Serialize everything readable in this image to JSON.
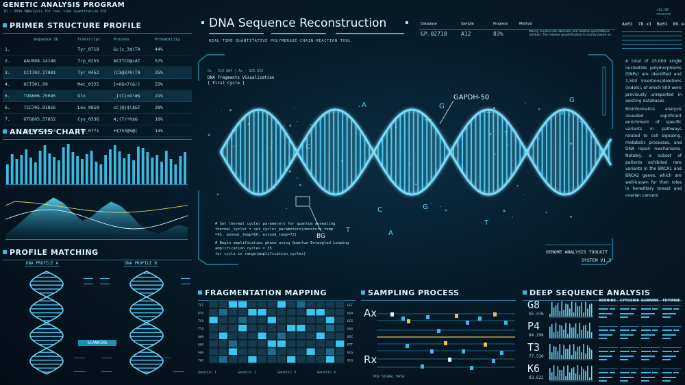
{
  "app": {
    "title": "GENETIC ANALYSIS PROGRAM",
    "subtitle_id": "ID : 3804.56C",
    "subtitle_desc": "Analysis for real-time quantitative PCR"
  },
  "primer": {
    "header": "PRIMER STRUCTURE PROFILE",
    "columns": [
      "Sequence ID",
      "Transcript",
      "Process",
      "Probability"
    ],
    "rows": [
      {
        "num": "1.",
        "seq": "",
        "transcript": "Tyr_0718",
        "process": "&c|c_3$(TA",
        "prob": "44%"
      },
      {
        "num": "2.",
        "seq": "AAU908.14148",
        "transcript": "Trp_0255",
        "process": "ASITCG@xAT",
        "prob": "57%"
      },
      {
        "num": "3.",
        "seq": "CCT702.17801",
        "transcript": "Tyr_0452",
        "process": "(C3@370(TA",
        "prob": "25%"
      },
      {
        "num": "4.",
        "seq": "GCT301.99",
        "transcript": "Met_0125",
        "process": "}>OG<7(&|)",
        "prob": "53%"
      },
      {
        "num": "5.",
        "seq": "TUA606.75045",
        "transcript": "Gln",
        "process": "_](C|<G!#$",
        "prob": "21%"
      },
      {
        "num": "6.",
        "seq": "TCC705.91856",
        "transcript": "Leu_0858",
        "process": "cC|@|$\\$&T",
        "prob": "28%"
      },
      {
        "num": "7.",
        "seq": "GTG605.57852",
        "transcript": "Cys_0336",
        "process": "4;(7/+%$&",
        "prob": "18%"
      },
      {
        "num": "8.",
        "seq": "TAT901.15483",
        "transcript": "Trp_0771",
        "process": "+$T53@%@(",
        "prob": "14%"
      }
    ]
  },
  "analysis_chart": {
    "header": "ANALYSIS CHART"
  },
  "chart_data": {
    "type": "bar",
    "values": [
      30,
      45,
      38,
      44,
      52,
      40,
      33,
      50,
      58,
      46,
      41,
      36,
      55,
      60,
      48,
      42,
      38,
      45,
      50,
      34,
      30,
      44,
      52,
      58,
      49,
      39,
      45,
      36,
      56,
      54,
      48,
      40,
      44,
      34,
      50,
      38,
      30,
      42,
      48
    ],
    "area_series": {
      "name": "",
      "values": [
        5,
        12,
        20,
        28,
        34,
        40,
        35,
        26,
        18,
        22,
        30,
        36,
        32,
        24,
        14,
        8,
        6,
        10,
        14,
        12
      ]
    }
  },
  "profile_matching": {
    "header": "PROFILE MATCHING",
    "profile_a": "DNA PROFILE A",
    "profile_b": "DNA PROFILE B",
    "scanning": "SCANNING",
    "labels": [
      "",
      ""
    ]
  },
  "center": {
    "title": "DNA Sequence Reconstruction",
    "subtitle": "REAL-TIME QUANTITATIVE POLYMERASE-CHAIN-REACTION TOOL",
    "fragment_coords": "Ox - 519.884 | Ax - 325.652",
    "fragment_title": "DNA Fragments Visualization",
    "fragment_cycle": "[ First Cycle ]",
    "gene_label": "GAPDH-50",
    "bg_label": "BG",
    "code_lines": [
      "# Set thermal cycler parameters for quantum annealing",
      "thermal_cycler = set_cycler_parameters(denature_temp",
      "=95, anneal_temp=60, extend_temp=72)",
      "",
      "# Begin amplification phase using Quantum Entangled Looping",
      "amplification_cycles = 35",
      "for cycle in range(amplification_cycles)"
    ],
    "toolkit_name": "GENOME ANALYSIS TOOLKIT",
    "toolkit_version": "SYSTEM V1.3"
  },
  "status": {
    "database_label": "Database",
    "database_value": "GP.02718",
    "sample_label": "Sample",
    "sample_value": "A12",
    "progress_label": "Progress",
    "progress_value": "83%",
    "method_label": "Method",
    "method_text": "Mainly divided into absolute and relative quantitative method. The relative quantification is mainly based on"
  },
  "topright": {
    "header_row": [
      "Ax01",
      "78.x1",
      "Bx01",
      "89.x4"
    ],
    "sub": "r12.00 reverse"
  },
  "right_text": {
    "paragraph1": "A total of 25,000 single nucleotide polymorphisms (SNPs) are identified and 1,500 insertions/deletions (indels), of which 500 were previously unreported in existing databases.",
    "paragraph2": "Bioinformatics analysis revealed significant enrichment of specific variants in pathways related to cell signaling, metabolic processes, and DNA repair mechanisms. Notably, a subset of patients exhibited rare variants in the BRCA1 and BRCA2 genes, which are well-known for their roles in hereditary breast and ovarian cancers"
  },
  "fragmentation": {
    "header": "FRAGMENTATION MAPPING",
    "row_labels_left": [
      "TCT",
      "GTG",
      "TCA",
      "TTA",
      "AAA",
      "AAG",
      "GGG",
      "TAC"
    ],
    "row_labels_right": [
      "GGT",
      "GGA",
      "GCG",
      "GAG",
      "GGC",
      "GTT",
      "GCG",
      "GCG"
    ],
    "footer": [
      "Genetic 1",
      "Genetic 2",
      "Genetic 3",
      "Genetic 4"
    ]
  },
  "sampling": {
    "header": "SAMPLING PROCESS",
    "label_top": "Ax",
    "label_bottom": "Rx",
    "foot": "PCR SIGNAL DATA"
  },
  "deep": {
    "header": "DEEP SEQUENCE ANALYSIS",
    "rows": [
      {
        "letter": "G8",
        "num": "55.476"
      },
      {
        "letter": "P4",
        "num": "84.298"
      },
      {
        "letter": "T3",
        "num": "77.520"
      },
      {
        "letter": "K6",
        "num": "03.622"
      }
    ],
    "columns": [
      "ADENINE",
      "CYTOSINE",
      "GUANINE",
      "THYMINE"
    ]
  }
}
